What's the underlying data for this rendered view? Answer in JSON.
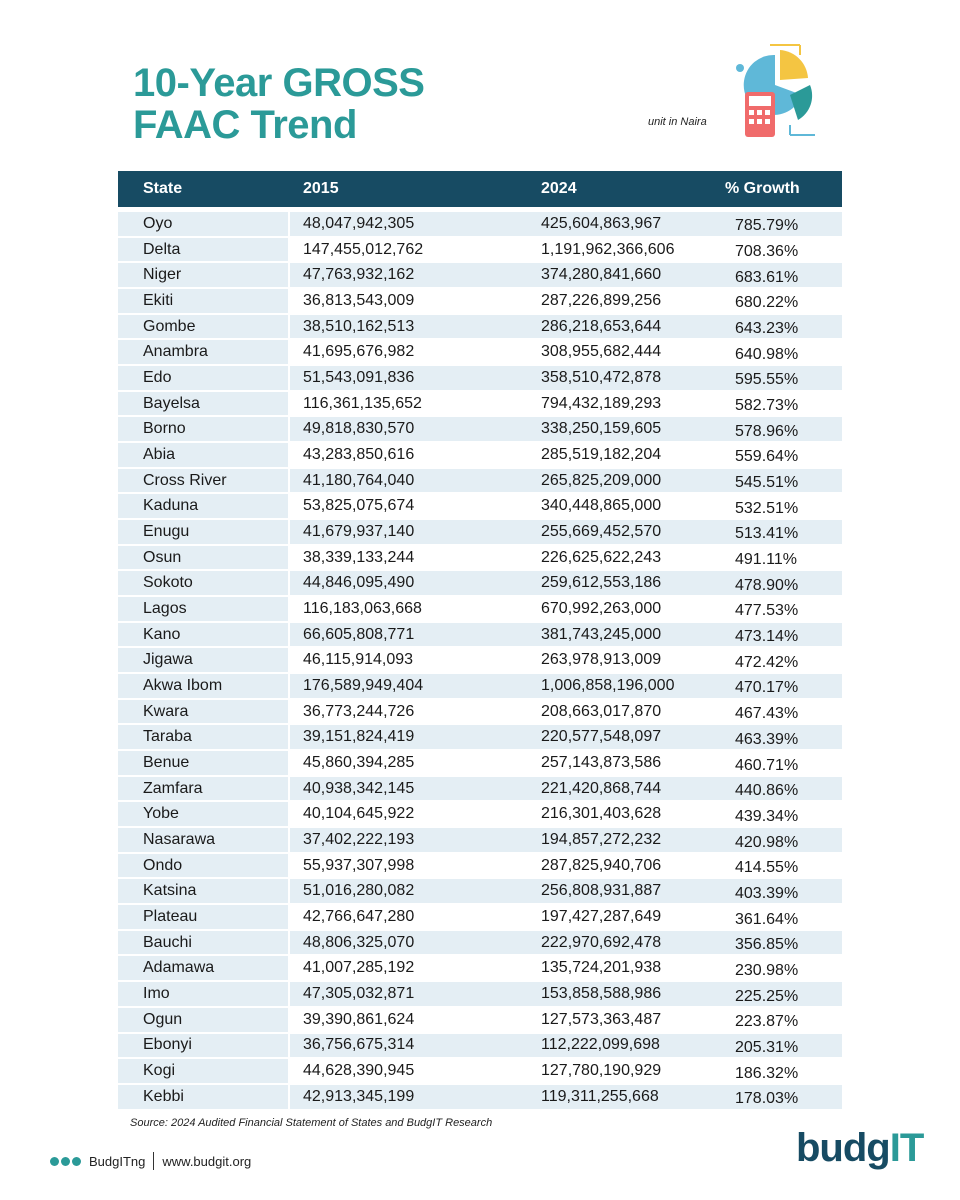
{
  "header": {
    "title_line1": "10-Year GROSS",
    "title_line2": "FAAC Trend",
    "unit_note": "unit in Naira"
  },
  "table": {
    "columns": [
      "State",
      "2015",
      "2024",
      "% Growth"
    ],
    "rows": [
      [
        "Oyo",
        "48,047,942,305",
        "425,604,863,967",
        "785.79%"
      ],
      [
        "Delta",
        "147,455,012,762",
        "1,191,962,366,606",
        "708.36%"
      ],
      [
        "Niger",
        "47,763,932,162",
        "374,280,841,660",
        "683.61%"
      ],
      [
        "Ekiti",
        "36,813,543,009",
        "287,226,899,256",
        "680.22%"
      ],
      [
        "Gombe",
        "38,510,162,513",
        "286,218,653,644",
        "643.23%"
      ],
      [
        "Anambra",
        "41,695,676,982",
        "308,955,682,444",
        "640.98%"
      ],
      [
        "Edo",
        "51,543,091,836",
        "358,510,472,878",
        "595.55%"
      ],
      [
        "Bayelsa",
        "116,361,135,652",
        "794,432,189,293",
        "582.73%"
      ],
      [
        "Borno",
        "49,818,830,570",
        "338,250,159,605",
        "578.96%"
      ],
      [
        "Abia",
        "43,283,850,616",
        "285,519,182,204",
        "559.64%"
      ],
      [
        "Cross River",
        "41,180,764,040",
        "265,825,209,000",
        "545.51%"
      ],
      [
        "Kaduna",
        "53,825,075,674",
        "340,448,865,000",
        "532.51%"
      ],
      [
        "Enugu",
        "41,679,937,140",
        "255,669,452,570",
        "513.41%"
      ],
      [
        "Osun",
        "38,339,133,244",
        "226,625,622,243",
        "491.11%"
      ],
      [
        "Sokoto",
        "44,846,095,490",
        "259,612,553,186",
        "478.90%"
      ],
      [
        "Lagos",
        "116,183,063,668",
        "670,992,263,000",
        "477.53%"
      ],
      [
        "Kano",
        "66,605,808,771",
        "381,743,245,000",
        "473.14%"
      ],
      [
        "Jigawa",
        "46,115,914,093",
        "263,978,913,009",
        "472.42%"
      ],
      [
        "Akwa Ibom",
        "176,589,949,404",
        "1,006,858,196,000",
        "470.17%"
      ],
      [
        "Kwara",
        "36,773,244,726",
        "208,663,017,870",
        "467.43%"
      ],
      [
        "Taraba",
        "39,151,824,419",
        "220,577,548,097",
        "463.39%"
      ],
      [
        "Benue",
        "45,860,394,285",
        "257,143,873,586",
        "460.71%"
      ],
      [
        "Zamfara",
        "40,938,342,145",
        "221,420,868,744",
        "440.86%"
      ],
      [
        "Yobe",
        "40,104,645,922",
        "216,301,403,628",
        "439.34%"
      ],
      [
        "Nasarawa",
        "37,402,222,193",
        "194,857,272,232",
        "420.98%"
      ],
      [
        "Ondo",
        "55,937,307,998",
        "287,825,940,706",
        "414.55%"
      ],
      [
        "Katsina",
        "51,016,280,082",
        "256,808,931,887",
        "403.39%"
      ],
      [
        "Plateau",
        "42,766,647,280",
        "197,427,287,649",
        "361.64%"
      ],
      [
        "Bauchi",
        "48,806,325,070",
        "222,970,692,478",
        "356.85%"
      ],
      [
        "Adamawa",
        "41,007,285,192",
        "135,724,201,938",
        "230.98%"
      ],
      [
        "Imo",
        "47,305,032,871",
        "153,858,588,986",
        "225.25%"
      ],
      [
        "Ogun",
        "39,390,861,624",
        "127,573,363,487",
        "223.87%"
      ],
      [
        "Ebonyi",
        "36,756,675,314",
        "112,222,099,698",
        "205.31%"
      ],
      [
        "Kogi",
        "44,628,390,945",
        "127,780,190,929",
        "186.32%"
      ],
      [
        "Kebbi",
        "42,913,345,199",
        "119,311,255,668",
        "178.03%"
      ]
    ]
  },
  "source": "Source: 2024 Audited Financial Statement of States and BudgIT Research",
  "footer": {
    "handle": "BudgITng",
    "website": "www.budgit.org",
    "logo_main": "budg",
    "logo_accent": "IT"
  }
}
